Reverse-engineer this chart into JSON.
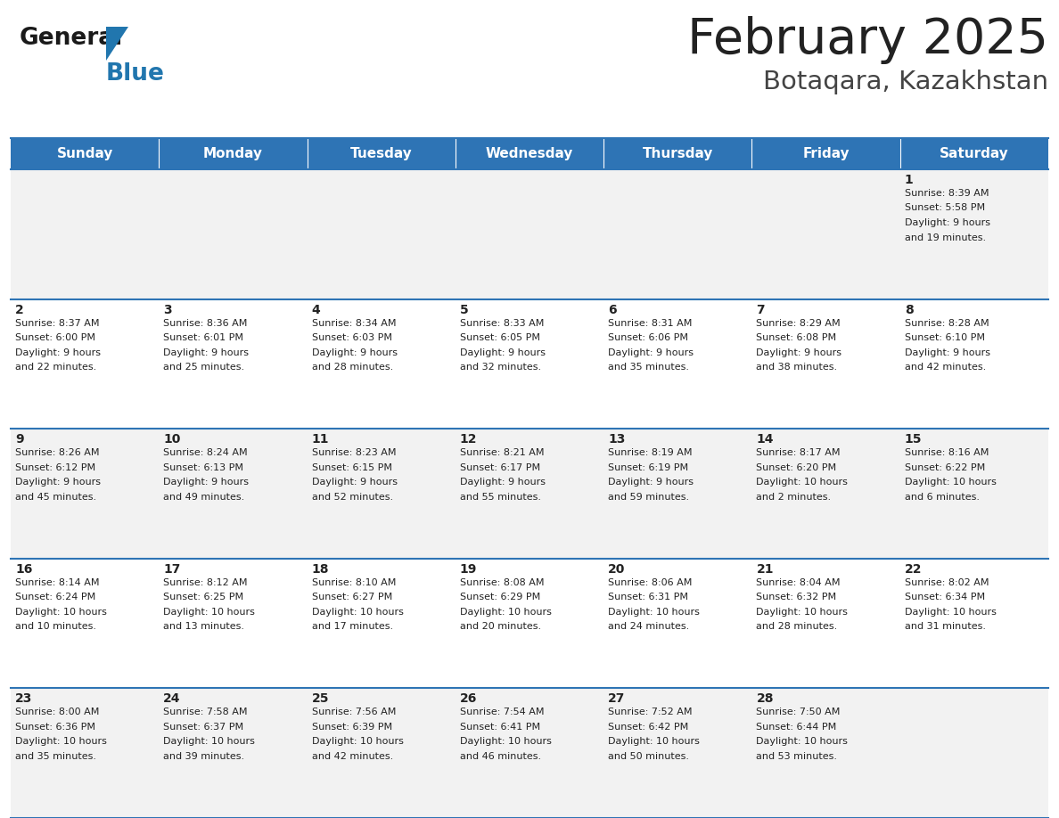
{
  "title": "February 2025",
  "subtitle": "Botaqara, Kazakhstan",
  "days_of_week": [
    "Sunday",
    "Monday",
    "Tuesday",
    "Wednesday",
    "Thursday",
    "Friday",
    "Saturday"
  ],
  "header_bg": "#2E74B5",
  "header_text": "#FFFFFF",
  "cell_bg_odd": "#F2F2F2",
  "cell_bg_even": "#FFFFFF",
  "cell_border": "#2E74B5",
  "day_num_color": "#222222",
  "info_text_color": "#222222",
  "title_color": "#222222",
  "subtitle_color": "#444444",
  "logo_general_color": "#1a1a1a",
  "logo_blue_color": "#2176AE",
  "logo_triangle_color": "#2176AE",
  "calendar_data": [
    {
      "day": 1,
      "col": 6,
      "row": 0,
      "sunrise": "8:39 AM",
      "sunset": "5:58 PM",
      "daylight": "9 hours and 19 minutes."
    },
    {
      "day": 2,
      "col": 0,
      "row": 1,
      "sunrise": "8:37 AM",
      "sunset": "6:00 PM",
      "daylight": "9 hours and 22 minutes."
    },
    {
      "day": 3,
      "col": 1,
      "row": 1,
      "sunrise": "8:36 AM",
      "sunset": "6:01 PM",
      "daylight": "9 hours and 25 minutes."
    },
    {
      "day": 4,
      "col": 2,
      "row": 1,
      "sunrise": "8:34 AM",
      "sunset": "6:03 PM",
      "daylight": "9 hours and 28 minutes."
    },
    {
      "day": 5,
      "col": 3,
      "row": 1,
      "sunrise": "8:33 AM",
      "sunset": "6:05 PM",
      "daylight": "9 hours and 32 minutes."
    },
    {
      "day": 6,
      "col": 4,
      "row": 1,
      "sunrise": "8:31 AM",
      "sunset": "6:06 PM",
      "daylight": "9 hours and 35 minutes."
    },
    {
      "day": 7,
      "col": 5,
      "row": 1,
      "sunrise": "8:29 AM",
      "sunset": "6:08 PM",
      "daylight": "9 hours and 38 minutes."
    },
    {
      "day": 8,
      "col": 6,
      "row": 1,
      "sunrise": "8:28 AM",
      "sunset": "6:10 PM",
      "daylight": "9 hours and 42 minutes."
    },
    {
      "day": 9,
      "col": 0,
      "row": 2,
      "sunrise": "8:26 AM",
      "sunset": "6:12 PM",
      "daylight": "9 hours and 45 minutes."
    },
    {
      "day": 10,
      "col": 1,
      "row": 2,
      "sunrise": "8:24 AM",
      "sunset": "6:13 PM",
      "daylight": "9 hours and 49 minutes."
    },
    {
      "day": 11,
      "col": 2,
      "row": 2,
      "sunrise": "8:23 AM",
      "sunset": "6:15 PM",
      "daylight": "9 hours and 52 minutes."
    },
    {
      "day": 12,
      "col": 3,
      "row": 2,
      "sunrise": "8:21 AM",
      "sunset": "6:17 PM",
      "daylight": "9 hours and 55 minutes."
    },
    {
      "day": 13,
      "col": 4,
      "row": 2,
      "sunrise": "8:19 AM",
      "sunset": "6:19 PM",
      "daylight": "9 hours and 59 minutes."
    },
    {
      "day": 14,
      "col": 5,
      "row": 2,
      "sunrise": "8:17 AM",
      "sunset": "6:20 PM",
      "daylight": "10 hours and 2 minutes."
    },
    {
      "day": 15,
      "col": 6,
      "row": 2,
      "sunrise": "8:16 AM",
      "sunset": "6:22 PM",
      "daylight": "10 hours and 6 minutes."
    },
    {
      "day": 16,
      "col": 0,
      "row": 3,
      "sunrise": "8:14 AM",
      "sunset": "6:24 PM",
      "daylight": "10 hours and 10 minutes."
    },
    {
      "day": 17,
      "col": 1,
      "row": 3,
      "sunrise": "8:12 AM",
      "sunset": "6:25 PM",
      "daylight": "10 hours and 13 minutes."
    },
    {
      "day": 18,
      "col": 2,
      "row": 3,
      "sunrise": "8:10 AM",
      "sunset": "6:27 PM",
      "daylight": "10 hours and 17 minutes."
    },
    {
      "day": 19,
      "col": 3,
      "row": 3,
      "sunrise": "8:08 AM",
      "sunset": "6:29 PM",
      "daylight": "10 hours and 20 minutes."
    },
    {
      "day": 20,
      "col": 4,
      "row": 3,
      "sunrise": "8:06 AM",
      "sunset": "6:31 PM",
      "daylight": "10 hours and 24 minutes."
    },
    {
      "day": 21,
      "col": 5,
      "row": 3,
      "sunrise": "8:04 AM",
      "sunset": "6:32 PM",
      "daylight": "10 hours and 28 minutes."
    },
    {
      "day": 22,
      "col": 6,
      "row": 3,
      "sunrise": "8:02 AM",
      "sunset": "6:34 PM",
      "daylight": "10 hours and 31 minutes."
    },
    {
      "day": 23,
      "col": 0,
      "row": 4,
      "sunrise": "8:00 AM",
      "sunset": "6:36 PM",
      "daylight": "10 hours and 35 minutes."
    },
    {
      "day": 24,
      "col": 1,
      "row": 4,
      "sunrise": "7:58 AM",
      "sunset": "6:37 PM",
      "daylight": "10 hours and 39 minutes."
    },
    {
      "day": 25,
      "col": 2,
      "row": 4,
      "sunrise": "7:56 AM",
      "sunset": "6:39 PM",
      "daylight": "10 hours and 42 minutes."
    },
    {
      "day": 26,
      "col": 3,
      "row": 4,
      "sunrise": "7:54 AM",
      "sunset": "6:41 PM",
      "daylight": "10 hours and 46 minutes."
    },
    {
      "day": 27,
      "col": 4,
      "row": 4,
      "sunrise": "7:52 AM",
      "sunset": "6:42 PM",
      "daylight": "10 hours and 50 minutes."
    },
    {
      "day": 28,
      "col": 5,
      "row": 4,
      "sunrise": "7:50 AM",
      "sunset": "6:44 PM",
      "daylight": "10 hours and 53 minutes."
    }
  ]
}
